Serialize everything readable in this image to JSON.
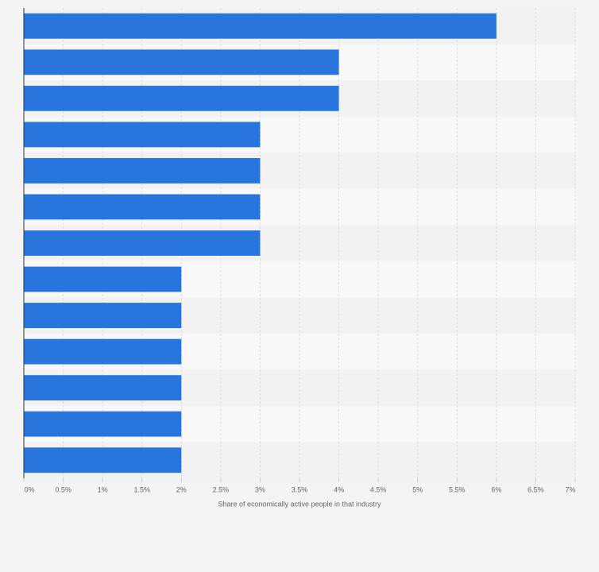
{
  "chart_data": {
    "type": "hbar",
    "x_label": "Share of economically active people in that industry",
    "categories": [
      null,
      null,
      null,
      null,
      null,
      null,
      null,
      null,
      null,
      null,
      null,
      null,
      null
    ],
    "values": [
      6,
      4,
      4,
      3,
      3,
      3,
      3,
      2,
      2,
      2,
      2,
      2,
      2
    ],
    "color": "#2876dd",
    "xlim": [
      0,
      7
    ],
    "xticks": [
      {
        "value": 0,
        "label": "0%"
      },
      {
        "value": 0.5,
        "label": "0.5%"
      },
      {
        "value": 1,
        "label": "1%"
      },
      {
        "value": 1.5,
        "label": "1.5%"
      },
      {
        "value": 2,
        "label": "2%"
      },
      {
        "value": 2.5,
        "label": "2.5%"
      },
      {
        "value": 3,
        "label": "3%"
      },
      {
        "value": 3.5,
        "label": "3.5%"
      },
      {
        "value": 4,
        "label": "4%"
      },
      {
        "value": 4.5,
        "label": "4.5%"
      },
      {
        "value": 5,
        "label": "5%"
      },
      {
        "value": 5.5,
        "label": "5.5%"
      },
      {
        "value": 6,
        "label": "6%"
      },
      {
        "value": 6.5,
        "label": "6.5%"
      },
      {
        "value": 7,
        "label": "7%"
      }
    ],
    "grid": true
  }
}
